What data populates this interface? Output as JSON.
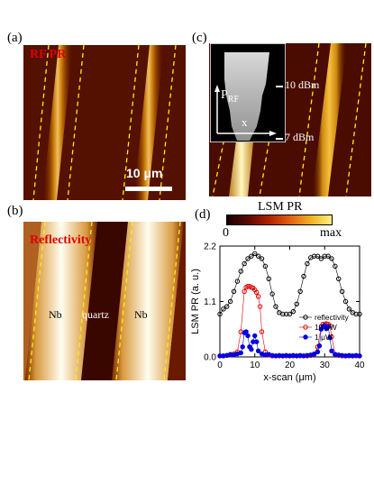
{
  "panels": {
    "a": {
      "label": "(a)",
      "title": "RF PR",
      "scalebar": "10 μm"
    },
    "b": {
      "label": "(b)",
      "title": "Reflectivity",
      "regions": [
        "Nb",
        "quartz",
        "Nb"
      ]
    },
    "c": {
      "label": "(c)",
      "inset_axis_p": "P",
      "inset_axis_p_sub": "RF",
      "inset_axis_x": "x",
      "level_high": "10 dBm",
      "level_low": "7 dBm"
    },
    "d": {
      "label": "(d)",
      "colorbar_title": "LSM PR",
      "colorbar_min": "0",
      "colorbar_max": "max"
    }
  },
  "colors": {
    "reflectivity": "#000000",
    "p10": "#e00000",
    "p1": "#0000e0"
  },
  "chart_data": {
    "type": "scatter",
    "xlabel": "x-scan (μm)",
    "ylabel": "LSM PR (a. u.)",
    "xlim": [
      0,
      40
    ],
    "ylim": [
      0,
      2.2
    ],
    "xticks": [
      0,
      10,
      20,
      30,
      40
    ],
    "yticks": [
      0.0,
      1.1,
      2.2
    ],
    "legend_position": "bottom-right",
    "series": [
      {
        "name": "reflectivity",
        "marker": "open-circle",
        "x": [
          0,
          1,
          2,
          3,
          4,
          5,
          6,
          7,
          8,
          9,
          10,
          11,
          12,
          13,
          14,
          15,
          16,
          17,
          18,
          19,
          20,
          21,
          22,
          23,
          24,
          25,
          26,
          27,
          28,
          29,
          30,
          31,
          32,
          33,
          34,
          35,
          36,
          37,
          38,
          39,
          40
        ],
        "y": [
          0.85,
          0.95,
          1.0,
          1.1,
          1.3,
          1.5,
          1.7,
          1.85,
          1.95,
          2.0,
          2.05,
          2.0,
          1.95,
          1.8,
          1.55,
          1.25,
          1.0,
          0.88,
          0.85,
          0.85,
          0.85,
          0.9,
          1.05,
          1.3,
          1.6,
          1.85,
          1.97,
          2.0,
          2.0,
          1.95,
          2.0,
          2.0,
          1.95,
          1.8,
          1.55,
          1.3,
          1.1,
          0.95,
          0.88,
          0.85,
          0.85
        ]
      },
      {
        "name": "10 μW",
        "marker": "open-circle",
        "x": [
          0,
          1,
          2,
          3,
          4,
          5,
          6,
          7,
          7.5,
          8,
          8.5,
          9,
          9.5,
          10,
          10.5,
          11,
          11.5,
          12,
          13,
          14,
          15,
          16,
          17,
          18,
          19,
          20,
          21,
          22,
          23,
          24,
          25,
          26,
          27,
          28,
          29,
          29.5,
          30,
          30.5,
          31,
          31.5,
          32,
          33,
          34,
          35,
          36,
          37,
          38,
          39,
          40
        ],
        "y": [
          0.02,
          0.02,
          0.03,
          0.04,
          0.06,
          0.1,
          0.5,
          1.3,
          1.38,
          1.4,
          1.4,
          1.38,
          1.37,
          1.33,
          1.28,
          1.2,
          1.0,
          0.5,
          0.1,
          0.04,
          0.02,
          0.02,
          0.02,
          0.02,
          0.02,
          0.02,
          0.02,
          0.02,
          0.02,
          0.02,
          0.02,
          0.03,
          0.05,
          0.2,
          0.6,
          0.65,
          0.65,
          0.66,
          0.65,
          0.62,
          0.4,
          0.05,
          0.03,
          0.02,
          0.02,
          0.02,
          0.02,
          0.02,
          0.02
        ]
      },
      {
        "name": "1 μW",
        "marker": "filled-circle",
        "x": [
          0,
          1,
          2,
          3,
          4,
          5,
          6,
          6.5,
          7,
          7.5,
          8,
          8.5,
          9,
          9.5,
          10,
          10.5,
          11,
          12,
          13,
          14,
          15,
          16,
          17,
          18,
          19,
          20,
          21,
          22,
          23,
          24,
          25,
          26,
          27,
          28,
          28.5,
          29,
          29.5,
          30,
          30.5,
          31,
          31.5,
          32,
          33,
          34,
          35,
          36,
          37,
          38,
          39,
          40
        ],
        "y": [
          0.02,
          0.02,
          0.03,
          0.05,
          0.04,
          0.06,
          0.08,
          0.2,
          0.48,
          0.5,
          0.42,
          0.2,
          0.15,
          0.3,
          0.42,
          0.3,
          0.12,
          0.06,
          0.04,
          0.05,
          0.03,
          0.02,
          0.03,
          0.02,
          0.03,
          0.02,
          0.03,
          0.02,
          0.03,
          0.02,
          0.03,
          0.04,
          0.06,
          0.1,
          0.22,
          0.55,
          0.6,
          0.62,
          0.56,
          0.6,
          0.38,
          0.12,
          0.05,
          0.04,
          0.03,
          0.02,
          0.03,
          0.02,
          0.03,
          0.02
        ]
      }
    ]
  }
}
